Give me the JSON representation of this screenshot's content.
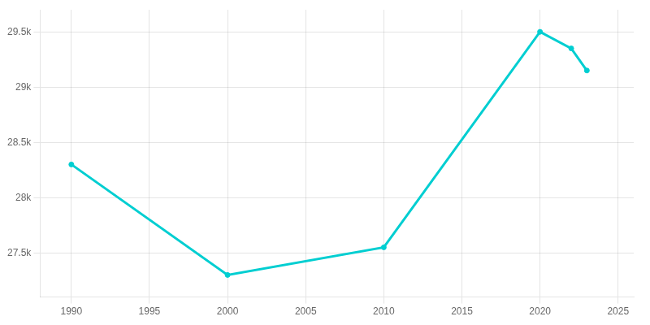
{
  "chart_data": {
    "type": "line",
    "x": [
      1990,
      2000,
      2010,
      2020,
      2022,
      2023
    ],
    "values": [
      28300,
      27300,
      27550,
      29500,
      29350,
      29150
    ],
    "color": "#00CED1",
    "marker": "circle",
    "xlim": [
      1988,
      2026
    ],
    "xticks": [
      1990,
      1995,
      2000,
      2005,
      2010,
      2015,
      2020,
      2025
    ],
    "ylim": [
      27100,
      29700
    ],
    "yticks": [
      {
        "value": 27500,
        "label": "27.5k"
      },
      {
        "value": 28000,
        "label": "28k"
      },
      {
        "value": 28500,
        "label": "28.5k"
      },
      {
        "value": 29000,
        "label": "29k"
      },
      {
        "value": 29500,
        "label": "29.5k"
      }
    ],
    "grid": true
  }
}
